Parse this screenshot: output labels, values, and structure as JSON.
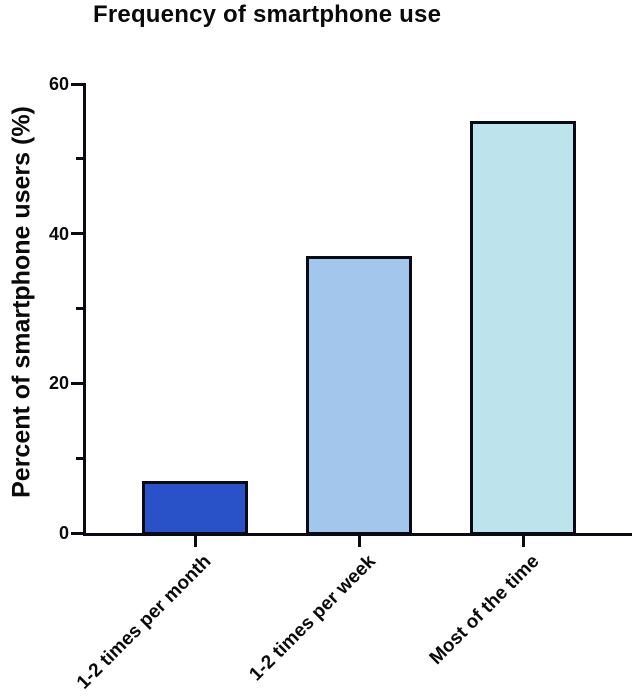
{
  "chart_data": {
    "type": "bar",
    "title": "Frequency of smartphone use",
    "ylabel": "Percent of smartphone users (%)",
    "xlabel": "",
    "categories": [
      "1-2 times per month",
      "1-2 times per week",
      "Most of the time"
    ],
    "values": [
      7,
      37,
      55
    ],
    "ylim": [
      0,
      60
    ],
    "yticks_major": [
      0,
      20,
      40,
      60
    ],
    "yticks_minor": [
      10,
      30,
      50
    ],
    "grid": false,
    "legend": "none",
    "bar_colors": [
      "#2a52c8",
      "#a2c6ec",
      "#bde4ed"
    ],
    "bar_border_color": "#0a0a14",
    "axis_color": "#0a0a14",
    "text_color": "#0a0a0a"
  }
}
